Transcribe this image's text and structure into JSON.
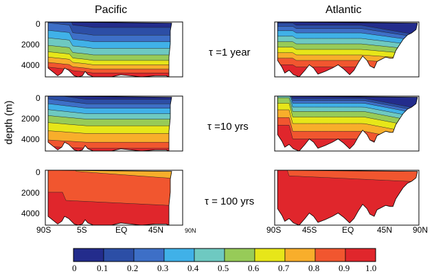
{
  "chart_data": {
    "type": "heatmap",
    "column_titles": [
      "Pacific",
      "Atlantic"
    ],
    "row_labels": [
      "τ =1 year",
      "τ =10 yrs",
      "τ = 100 yrs"
    ],
    "ylabel": "depth (m)",
    "ylim": [
      0,
      5000
    ],
    "y_ticks": [
      "0",
      "2000",
      "4000"
    ],
    "x_ticks": {
      "pacific": [
        "90S",
        "5S",
        "EQ",
        "45N",
        "90N"
      ],
      "atlantic": [
        "90S",
        "45S",
        "EQ",
        "45N",
        "90N"
      ]
    },
    "colorbar": {
      "ticks": [
        "0",
        "0.1",
        "0.2",
        "0.3",
        "0.4",
        "0.5",
        "0.6",
        "0.7",
        "0.8",
        "0.9",
        "1.0"
      ],
      "colors": [
        "#232c8c",
        "#2c4ea6",
        "#3d6fc7",
        "#40b1e8",
        "#6ec9c1",
        "#97cb58",
        "#e7e619",
        "#f8ae2b",
        "#f1562f",
        "#e0262c"
      ]
    },
    "grid": false
  }
}
